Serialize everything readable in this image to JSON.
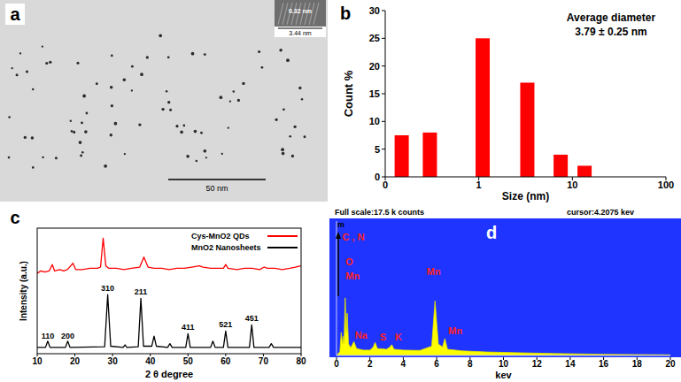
{
  "chart_data": [
    {
      "type": "image",
      "panel": "a",
      "scale_bar": "50 nm",
      "inset_labels": [
        "0.32 nm",
        "3.44 nm"
      ]
    },
    {
      "type": "bar",
      "panel": "b",
      "xlabel": "Size (nm)",
      "ylabel": "Count %",
      "annotations": [
        "Average diameter",
        "3.79 ± 0.25 nm"
      ],
      "x": [
        0.15,
        0.3,
        1.1,
        3.3,
        7.5,
        13.5
      ],
      "values": [
        7.5,
        8,
        25,
        17,
        4,
        2
      ],
      "color": "#ff0000",
      "log": "x",
      "xlim": [
        0.1,
        100
      ],
      "xticks": [
        {
          "value": 0.1,
          "label": "0"
        },
        1,
        10,
        100
      ],
      "ylim": [
        0,
        30
      ],
      "yticks": [
        0,
        5,
        10,
        15,
        20,
        25,
        30
      ]
    },
    {
      "type": "line",
      "panel": "c",
      "xlabel": "2 θ degree",
      "ylabel": "Intensity (a.u.)",
      "xlim": [
        10,
        80
      ],
      "xticks": [
        10,
        20,
        30,
        40,
        50,
        60,
        70,
        80
      ],
      "ylim": [
        0,
        100
      ],
      "tick_labels": "x",
      "legend": "top-right",
      "series": [
        {
          "name": "Cys-MnO2 QDs",
          "color": "#ff0000",
          "x": [
            10,
            11,
            12,
            13.2,
            14,
            14.6,
            16,
            17,
            18,
            19.5,
            20.2,
            22,
            24,
            26,
            26.8,
            27.5,
            28.2,
            29,
            31,
            33,
            35,
            37.2,
            38.3,
            39.4,
            41,
            43,
            45,
            47,
            49,
            51,
            53,
            54,
            56,
            58,
            59.4,
            60,
            60.6,
            63,
            65,
            67,
            69,
            70.2,
            71,
            73,
            75,
            77,
            78.5,
            80
          ],
          "values": [
            64,
            66,
            65,
            66,
            71,
            66,
            67,
            66,
            67,
            72,
            67,
            67,
            68,
            68,
            69,
            92,
            70,
            68,
            68,
            67,
            68,
            69,
            77,
            69,
            68,
            68,
            67,
            68,
            68,
            69,
            70,
            69,
            68,
            68,
            68,
            71,
            68,
            67,
            68,
            68,
            67,
            69,
            68,
            68,
            67,
            68,
            69,
            70
          ]
        },
        {
          "name": "MnO2 Nanosheets",
          "color": "#000000",
          "x": [
            10,
            12.2,
            12.8,
            13.4,
            17.5,
            18.1,
            18.7,
            27.9,
            28.7,
            29.5,
            32.8,
            33.3,
            33.8,
            36.8,
            37.5,
            38.2,
            40.4,
            41,
            41.6,
            44.6,
            45.2,
            45.8,
            49.4,
            50,
            50.6,
            56,
            56.6,
            57.2,
            59.4,
            60,
            60.6,
            66.3,
            66.9,
            67.5,
            71.5,
            72.1,
            72.7,
            80
          ],
          "values": [
            5,
            5,
            10,
            5,
            5,
            10,
            5,
            5.5,
            47,
            6,
            5,
            7,
            5,
            5.5,
            44,
            6,
            6,
            14,
            6,
            5,
            8,
            5,
            5,
            16,
            5,
            5,
            10,
            5,
            5,
            18,
            5,
            5,
            23,
            5,
            5,
            8,
            5,
            5
          ]
        }
      ],
      "annotations": [
        {
          "text": "110",
          "x": 12.8,
          "y": 12
        },
        {
          "text": "200",
          "x": 18.1,
          "y": 12
        },
        {
          "text": "310",
          "x": 28.7,
          "y": 50
        },
        {
          "text": "211",
          "x": 37.5,
          "y": 47
        },
        {
          "text": "411",
          "x": 50,
          "y": 19
        },
        {
          "text": "521",
          "x": 60,
          "y": 21
        },
        {
          "text": "451",
          "x": 66.9,
          "y": 26
        }
      ]
    },
    {
      "type": "area",
      "panel": "d",
      "title": "Full scale:17.5 k counts",
      "subtitle": "cursor:4.2075 kev",
      "xlabel": "kev",
      "x": [
        0,
        0.2,
        0.28,
        0.35,
        0.39,
        0.45,
        0.52,
        0.58,
        0.64,
        0.72,
        0.85,
        1.04,
        1.2,
        1.6,
        2.0,
        2.2,
        2.31,
        2.45,
        3.0,
        3.2,
        3.31,
        3.45,
        4.0,
        5.0,
        5.7,
        5.9,
        6.1,
        6.35,
        6.49,
        6.65,
        7.5,
        9,
        11,
        13,
        16,
        20
      ],
      "values": [
        0,
        500,
        3000,
        1500,
        2500,
        1500,
        7500,
        3000,
        5500,
        1500,
        1000,
        1800,
        900,
        700,
        700,
        1100,
        1700,
        900,
        800,
        1100,
        1400,
        800,
        700,
        650,
        1200,
        7100,
        1500,
        1100,
        2200,
        800,
        600,
        450,
        350,
        250,
        150,
        80
      ],
      "color": "#ffff00",
      "xlim": [
        0,
        20
      ],
      "xticks": [
        0,
        2,
        4,
        6,
        8,
        10,
        12,
        14,
        16,
        18,
        20
      ],
      "ylim": [
        0,
        17500
      ],
      "tick_labels": "x",
      "annotations": [
        {
          "text": "m",
          "x": 0.05,
          "y": 16700,
          "color": "#000000"
        },
        {
          "text": "C , N",
          "x": 0.35,
          "y": 15000,
          "color": "#ff2020"
        },
        {
          "text": "O",
          "x": 0.55,
          "y": 11800,
          "color": "#ff2020"
        },
        {
          "text": "Mn",
          "x": 0.55,
          "y": 9900,
          "color": "#ff2020"
        },
        {
          "text": "Na",
          "x": 1.1,
          "y": 2200,
          "color": "#ff2020"
        },
        {
          "text": "S",
          "x": 2.6,
          "y": 2000,
          "color": "#ff2020"
        },
        {
          "text": "K",
          "x": 3.5,
          "y": 2000,
          "color": "#ff2020"
        },
        {
          "text": "Mn",
          "x": 5.4,
          "y": 10500,
          "color": "#ff2020"
        },
        {
          "text": "Mn",
          "x": 6.7,
          "y": 2800,
          "color": "#ff2020"
        }
      ]
    }
  ]
}
